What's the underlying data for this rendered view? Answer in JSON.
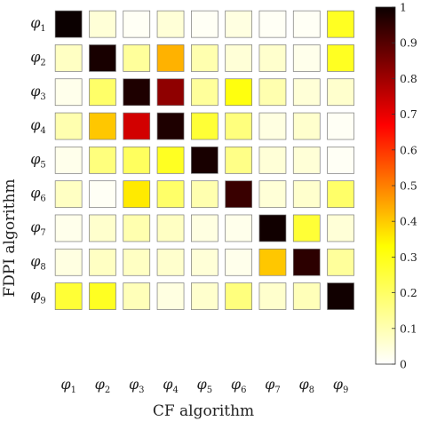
{
  "chart_data": {
    "type": "heatmap",
    "title": "",
    "xlabel": "CF algorithm",
    "ylabel": "FDPI algorithm",
    "x_categories": [
      "φ1",
      "φ2",
      "φ3",
      "φ4",
      "φ5",
      "φ6",
      "φ7",
      "φ8",
      "φ9"
    ],
    "y_categories": [
      "φ1",
      "φ2",
      "φ3",
      "φ4",
      "φ5",
      "φ6",
      "φ7",
      "φ8",
      "φ9"
    ],
    "values": [
      [
        1.0,
        0.04,
        0.01,
        0.04,
        0.01,
        0.03,
        0.01,
        0.01,
        0.22
      ],
      [
        0.06,
        0.98,
        0.1,
        0.38,
        0.08,
        0.04,
        0.05,
        0.02,
        0.22
      ],
      [
        0.02,
        0.15,
        0.97,
        0.8,
        0.1,
        0.24,
        0.08,
        0.04,
        0.05
      ],
      [
        0.08,
        0.35,
        0.7,
        0.97,
        0.2,
        0.13,
        0.03,
        0.05,
        0.01
      ],
      [
        0.02,
        0.13,
        0.16,
        0.22,
        0.98,
        0.12,
        0.04,
        0.04,
        0.01
      ],
      [
        0.06,
        0.01,
        0.3,
        0.15,
        0.08,
        0.93,
        0.04,
        0.05,
        0.15
      ],
      [
        0.02,
        0.05,
        0.08,
        0.06,
        0.03,
        0.02,
        0.99,
        0.2,
        0.04
      ],
      [
        0.03,
        0.06,
        0.06,
        0.05,
        0.04,
        0.02,
        0.35,
        0.95,
        0.1
      ],
      [
        0.2,
        0.22,
        0.07,
        0.03,
        0.05,
        0.13,
        0.05,
        0.07,
        0.99
      ]
    ],
    "colorbar": {
      "colormap": "hot (reversed: white = 0, black = 1)",
      "range": [
        0,
        1
      ],
      "ticks": [
        "0",
        "0.1",
        "0.2",
        "0.3",
        "0.4",
        "0.5",
        "0.6",
        "0.7",
        "0.8",
        "0.9",
        "1"
      ]
    },
    "grid": false
  }
}
